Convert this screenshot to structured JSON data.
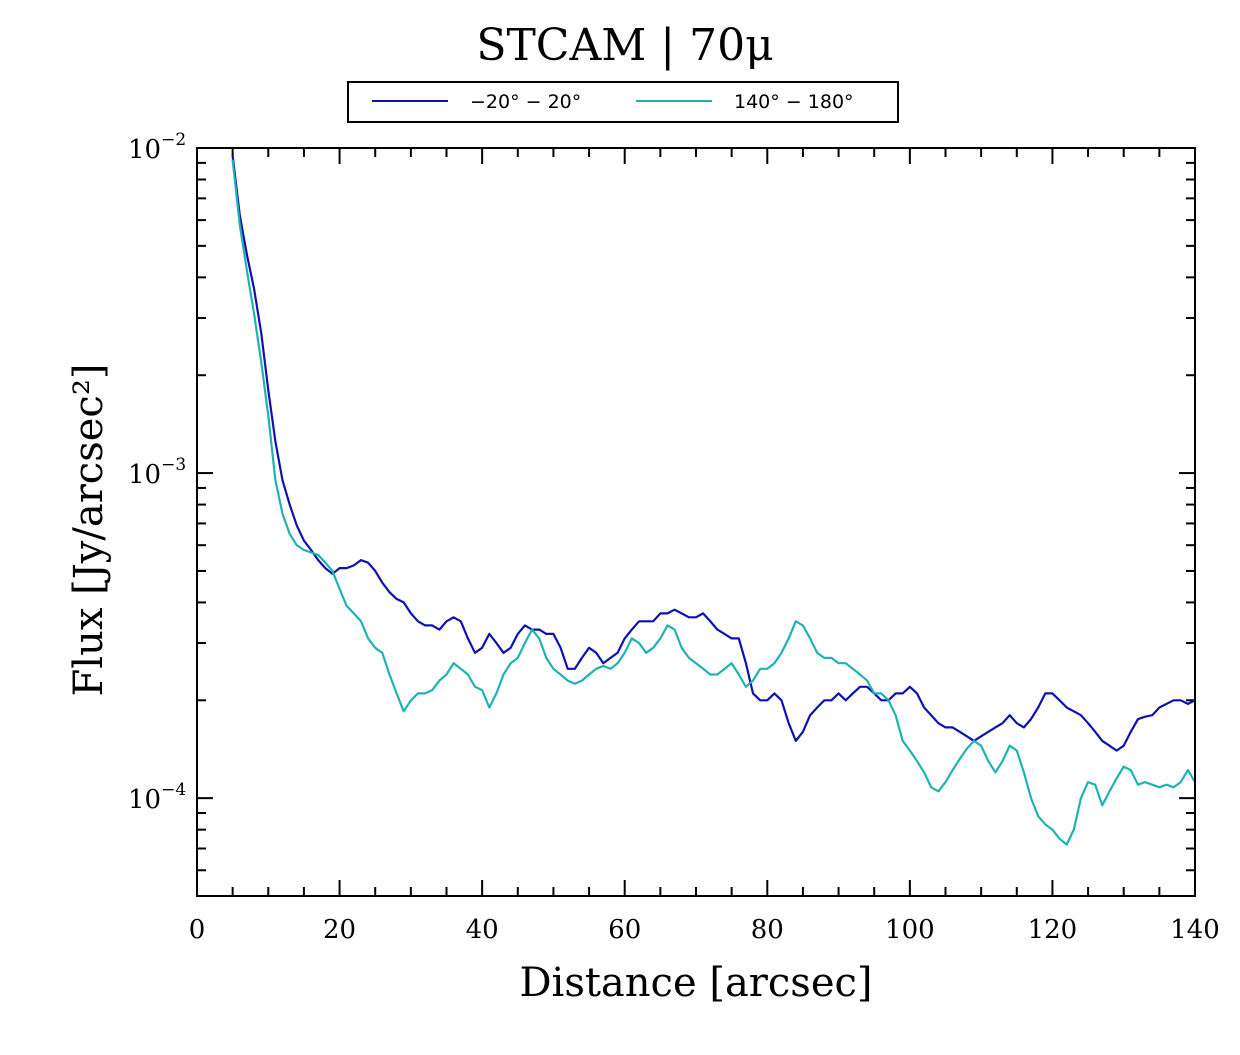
{
  "chart_data": {
    "type": "line",
    "title": "STCAM | 70μ",
    "xlabel": "Distance [arcsec]",
    "ylabel": "Flux [Jy/arcsec²]",
    "xlim": [
      0,
      140
    ],
    "ylim": [
      5e-05,
      0.01
    ],
    "yscale": "log",
    "xticks": [
      0,
      20,
      40,
      60,
      80,
      100,
      120,
      140
    ],
    "xtick_labels": [
      "0",
      "20",
      "40",
      "60",
      "80",
      "100",
      "120",
      "140"
    ],
    "yticks": [
      {
        "value": 0.01,
        "base": "10",
        "exp": "−2"
      },
      {
        "value": 0.001,
        "base": "10",
        "exp": "−3"
      },
      {
        "value": 0.0001,
        "base": "10",
        "exp": "−4"
      }
    ],
    "legend_position": "top-center (above plot)",
    "series": [
      {
        "name": "−20° − 20°",
        "color": "#1010b0",
        "x": [
          5,
          6,
          7,
          8,
          9,
          10,
          11,
          12,
          13,
          14,
          15,
          16,
          17,
          18,
          19,
          20,
          21,
          22,
          23,
          24,
          25,
          26,
          27,
          28,
          29,
          30,
          31,
          32,
          33,
          34,
          35,
          36,
          37,
          38,
          39,
          40,
          41,
          42,
          43,
          44,
          45,
          46,
          47,
          48,
          49,
          50,
          51,
          52,
          53,
          54,
          55,
          56,
          57,
          58,
          59,
          60,
          61,
          62,
          63,
          64,
          65,
          66,
          67,
          68,
          69,
          70,
          71,
          72,
          73,
          74,
          75,
          76,
          77,
          78,
          79,
          80,
          81,
          82,
          83,
          84,
          85,
          86,
          87,
          88,
          89,
          90,
          91,
          92,
          93,
          94,
          95,
          96,
          97,
          98,
          99,
          100,
          101,
          102,
          103,
          104,
          105,
          106,
          107,
          108,
          109,
          110,
          111,
          112,
          113,
          114,
          115,
          116,
          117,
          118,
          119,
          120,
          121,
          122,
          123,
          124,
          125,
          126,
          127,
          128,
          129,
          130,
          131,
          132,
          133,
          134,
          135,
          136,
          137,
          138,
          139,
          140
        ],
        "values": [
          0.0095,
          0.0062,
          0.0047,
          0.0037,
          0.0027,
          0.0018,
          0.00125,
          0.00095,
          0.0008,
          0.00069,
          0.00062,
          0.00058,
          0.00054,
          0.00051,
          0.00049,
          0.00051,
          0.00051,
          0.00052,
          0.00054,
          0.00053,
          0.0005,
          0.00046,
          0.00043,
          0.00041,
          0.0004,
          0.00037,
          0.00035,
          0.00034,
          0.00034,
          0.00033,
          0.00035,
          0.00036,
          0.00035,
          0.00031,
          0.00028,
          0.00029,
          0.00032,
          0.0003,
          0.00028,
          0.00029,
          0.00032,
          0.00034,
          0.00033,
          0.00033,
          0.00032,
          0.00032,
          0.00029,
          0.00025,
          0.00025,
          0.00027,
          0.00029,
          0.00028,
          0.00026,
          0.00027,
          0.00028,
          0.00031,
          0.00033,
          0.00035,
          0.00035,
          0.00035,
          0.00037,
          0.00037,
          0.00038,
          0.00037,
          0.00036,
          0.00036,
          0.00037,
          0.00035,
          0.00033,
          0.00032,
          0.00031,
          0.00031,
          0.00026,
          0.00021,
          0.0002,
          0.0002,
          0.00021,
          0.0002,
          0.00017,
          0.00015,
          0.00016,
          0.00018,
          0.00019,
          0.0002,
          0.0002,
          0.00021,
          0.0002,
          0.00021,
          0.00022,
          0.00022,
          0.00021,
          0.0002,
          0.0002,
          0.00021,
          0.00021,
          0.00022,
          0.00021,
          0.00019,
          0.00018,
          0.00017,
          0.000165,
          0.000165,
          0.00016,
          0.000155,
          0.00015,
          0.000155,
          0.00016,
          0.000165,
          0.00017,
          0.00018,
          0.00017,
          0.000165,
          0.000175,
          0.00019,
          0.00021,
          0.00021,
          0.0002,
          0.00019,
          0.000185,
          0.00018,
          0.00017,
          0.00016,
          0.00015,
          0.000145,
          0.00014,
          0.000145,
          0.00016,
          0.000175,
          0.000178,
          0.00018,
          0.00019,
          0.000195,
          0.0002,
          0.0002,
          0.000195,
          0.0002
        ]
      },
      {
        "name": "140° − 180°",
        "color": "#20b2b2",
        "x": [
          5,
          6,
          7,
          8,
          9,
          10,
          11,
          12,
          13,
          14,
          15,
          16,
          17,
          18,
          19,
          20,
          21,
          22,
          23,
          24,
          25,
          26,
          27,
          28,
          29,
          30,
          31,
          32,
          33,
          34,
          35,
          36,
          37,
          38,
          39,
          40,
          41,
          42,
          43,
          44,
          45,
          46,
          47,
          48,
          49,
          50,
          51,
          52,
          53,
          54,
          55,
          56,
          57,
          58,
          59,
          60,
          61,
          62,
          63,
          64,
          65,
          66,
          67,
          68,
          69,
          70,
          71,
          72,
          73,
          74,
          75,
          76,
          77,
          78,
          79,
          80,
          81,
          82,
          83,
          84,
          85,
          86,
          87,
          88,
          89,
          90,
          91,
          92,
          93,
          94,
          95,
          96,
          97,
          98,
          99,
          100,
          101,
          102,
          103,
          104,
          105,
          106,
          107,
          108,
          109,
          110,
          111,
          112,
          113,
          114,
          115,
          116,
          117,
          118,
          119,
          120,
          121,
          122,
          123,
          124,
          125,
          126,
          127,
          128,
          129,
          130,
          131,
          132,
          133,
          134,
          135,
          136,
          137,
          138,
          139,
          140
        ],
        "values": [
          0.0092,
          0.0058,
          0.0042,
          0.0031,
          0.0022,
          0.0015,
          0.00095,
          0.00075,
          0.00065,
          0.0006,
          0.00058,
          0.00057,
          0.00056,
          0.00053,
          0.0005,
          0.00044,
          0.00039,
          0.00037,
          0.00035,
          0.00031,
          0.00029,
          0.00028,
          0.00024,
          0.00021,
          0.000185,
          0.0002,
          0.00021,
          0.00021,
          0.000215,
          0.00023,
          0.00024,
          0.00026,
          0.00025,
          0.00024,
          0.00022,
          0.000215,
          0.00019,
          0.00021,
          0.00024,
          0.00026,
          0.00027,
          0.0003,
          0.00033,
          0.00031,
          0.00027,
          0.00025,
          0.00024,
          0.00023,
          0.000225,
          0.00023,
          0.00024,
          0.00025,
          0.000255,
          0.00025,
          0.00026,
          0.00028,
          0.00031,
          0.0003,
          0.00028,
          0.00029,
          0.00031,
          0.00034,
          0.00033,
          0.00029,
          0.00027,
          0.00026,
          0.00025,
          0.00024,
          0.00024,
          0.00025,
          0.00026,
          0.00024,
          0.00022,
          0.00023,
          0.00025,
          0.00025,
          0.00026,
          0.00028,
          0.00031,
          0.00035,
          0.00034,
          0.00031,
          0.00028,
          0.00027,
          0.00027,
          0.00026,
          0.00026,
          0.00025,
          0.00024,
          0.00023,
          0.00021,
          0.00021,
          0.0002,
          0.00018,
          0.00015,
          0.00014,
          0.00013,
          0.00012,
          0.000108,
          0.000105,
          0.000112,
          0.000122,
          0.000132,
          0.000142,
          0.00015,
          0.000145,
          0.00013,
          0.00012,
          0.00013,
          0.000145,
          0.00014,
          0.00012,
          0.0001,
          8.8e-05,
          8.3e-05,
          8e-05,
          7.5e-05,
          7.2e-05,
          8e-05,
          0.0001,
          0.000112,
          0.00011,
          9.5e-05,
          0.000105,
          0.000115,
          0.000125,
          0.000122,
          0.00011,
          0.000112,
          0.00011,
          0.000108,
          0.00011,
          0.000108,
          0.000112,
          0.000122,
          0.000112
        ]
      }
    ]
  }
}
